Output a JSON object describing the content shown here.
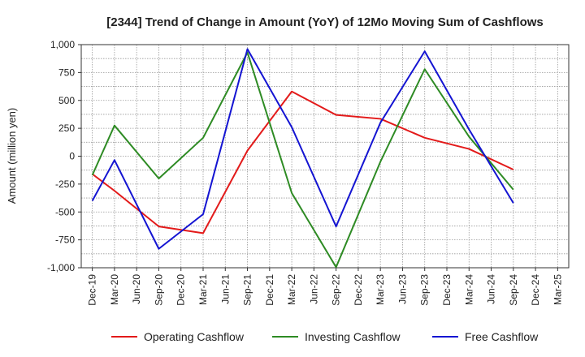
{
  "chart_data": {
    "type": "line",
    "title": "[2344]  Trend of Change in Amount (YoY) of 12Mo Moving Sum of Cashflows",
    "xlabel": "",
    "ylabel": "Amount (million yen)",
    "ylim": [
      -1000,
      1000
    ],
    "yticks": [
      1000,
      750,
      500,
      250,
      0,
      -250,
      -500,
      -750,
      -1000
    ],
    "ytick_labels": [
      "1,000",
      "750",
      "500",
      "250",
      "0",
      "-250",
      "-500",
      "-750",
      "-1,000"
    ],
    "categories": [
      "Dec-19",
      "Mar-20",
      "Jun-20",
      "Sep-20",
      "Dec-20",
      "Mar-21",
      "Jun-21",
      "Sep-21",
      "Dec-21",
      "Mar-22",
      "Jun-22",
      "Sep-22",
      "Dec-22",
      "Mar-23",
      "Jun-23",
      "Sep-23",
      "Dec-23",
      "Mar-24",
      "Jun-24",
      "Sep-24",
      "Dec-24",
      "Mar-25"
    ],
    "grid": true,
    "legend_position": "bottom",
    "series": [
      {
        "name": "Operating Cashflow",
        "color": "#e31a1a",
        "values": [
          -160,
          -310,
          null,
          -630,
          null,
          -690,
          null,
          50,
          null,
          580,
          null,
          370,
          null,
          335,
          null,
          165,
          null,
          65,
          null,
          -120,
          null,
          null
        ]
      },
      {
        "name": "Investing Cashflow",
        "color": "#2e8b24",
        "values": [
          -170,
          275,
          null,
          -200,
          null,
          165,
          null,
          930,
          null,
          -330,
          null,
          -995,
          null,
          -50,
          null,
          780,
          null,
          175,
          null,
          -300,
          null,
          null
        ]
      },
      {
        "name": "Free Cashflow",
        "color": "#1414d2",
        "values": [
          -400,
          -35,
          null,
          -830,
          null,
          -520,
          null,
          960,
          null,
          260,
          null,
          -630,
          null,
          300,
          null,
          940,
          null,
          240,
          null,
          -420,
          null,
          null
        ]
      }
    ]
  }
}
